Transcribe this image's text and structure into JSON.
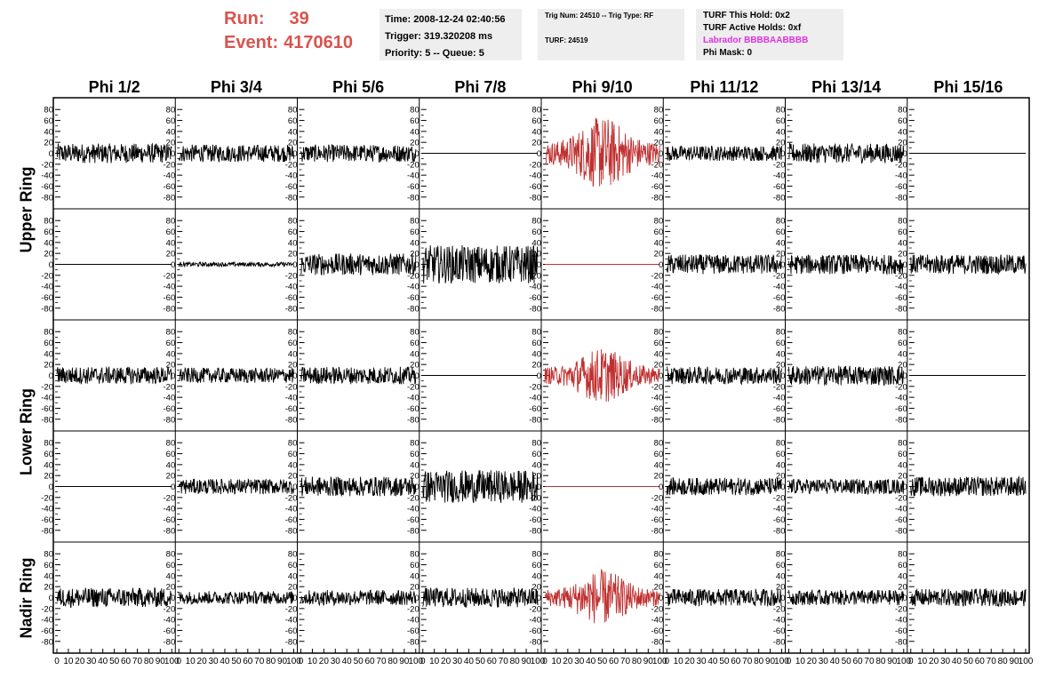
{
  "header": {
    "run_label": "Run:",
    "run_value": "39",
    "event_label": "Event:",
    "event_value": "4170610",
    "time": "Time: 2008-12-24 02:40:56",
    "trigger": "Trigger: 319.320208 ms",
    "priority": "Priority: 5 -- Queue: 5",
    "trig_num": "Trig Num: 24510 -- Trig Type: RF",
    "turf": "TURF: 24519",
    "turf_this_hold": "TURF This Hold: 0x2",
    "turf_active_holds": "TURF Active Holds: 0xf",
    "labrador": "Labrador BBBBAABBBB",
    "phi_mask": "Phi Mask: 0"
  },
  "columns": [
    "Phi 1/2",
    "Phi 3/4",
    "Phi 5/6",
    "Phi 7/8",
    "Phi 9/10",
    "Phi 11/12",
    "Phi 13/14",
    "Phi 15/16"
  ],
  "row_labels": [
    {
      "label": "Upper Ring",
      "rows": [
        0,
        1
      ]
    },
    {
      "label": "Lower Ring",
      "rows": [
        2,
        3
      ]
    },
    {
      "label": "Nadir Ring",
      "rows": [
        4
      ]
    }
  ],
  "y_ticks": [
    80,
    60,
    40,
    20,
    0,
    -20,
    -40,
    -60,
    -80
  ],
  "y_range": [
    -95,
    95
  ],
  "x_ticks": [
    0,
    10,
    20,
    30,
    40,
    50,
    60,
    70,
    80,
    90,
    100
  ],
  "x_range": [
    0,
    100
  ],
  "colors": {
    "normal": "#000000",
    "highlight": "#c03030",
    "magenta": "#e030e0",
    "run": "#d9534f"
  },
  "channels": [
    [
      "n18",
      "n16",
      "n16",
      "flat",
      "r40",
      "n14",
      "n18",
      "flat"
    ],
    [
      "flat",
      "n4",
      "n20",
      "n35",
      "flatred",
      "n18",
      "n18",
      "n18"
    ],
    [
      "n16",
      "n14",
      "n16",
      "flat",
      "r30",
      "n16",
      "n18",
      "flat"
    ],
    [
      "flat",
      "n14",
      "n18",
      "n30",
      "flatred",
      "n16",
      "n14",
      "n18"
    ],
    [
      "n18",
      "n12",
      "n14",
      "n18",
      "r30",
      "n16",
      "n14",
      "n16"
    ]
  ]
}
